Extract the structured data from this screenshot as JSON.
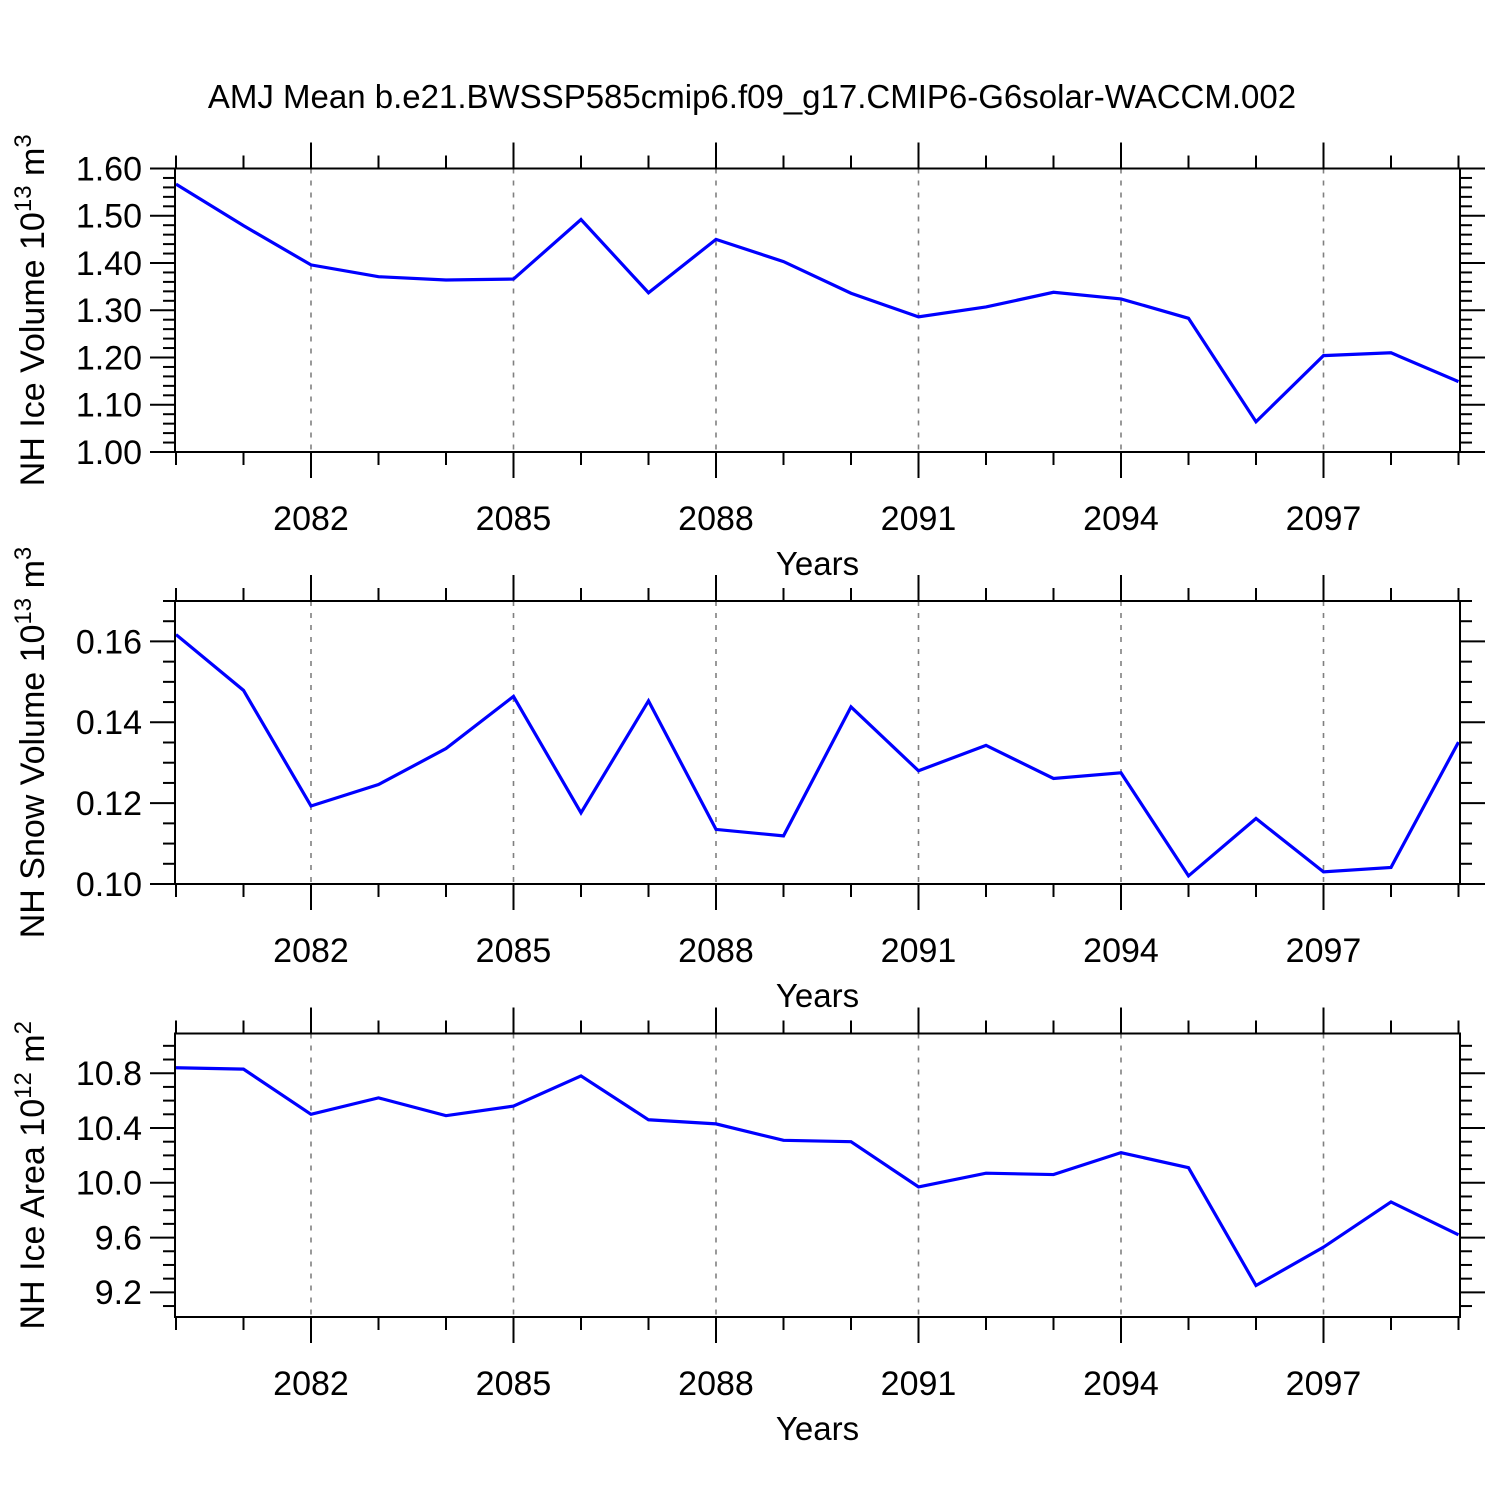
{
  "title": "AMJ Mean b.e21.BWSSP585cmip6.f09_g17.CMIP6-G6solar-WACCM.002",
  "colors": {
    "line": "#0000ff",
    "axis": "#000000",
    "grid": "#808080",
    "background": "#ffffff"
  },
  "chart_data": [
    {
      "type": "line",
      "name": "nh-ice-volume",
      "ylabel": "NH Ice Volume 10^13 m^3",
      "ylabel_segments": [
        {
          "text": "NH Ice Volume 10",
          "sup": false
        },
        {
          "text": "13",
          "sup": true
        },
        {
          "text": " m",
          "sup": false
        },
        {
          "text": "3",
          "sup": true
        }
      ],
      "xlabel": "Years",
      "x": [
        2080,
        2081,
        2082,
        2083,
        2084,
        2085,
        2086,
        2087,
        2088,
        2089,
        2090,
        2091,
        2092,
        2093,
        2094,
        2095,
        2096,
        2097,
        2098,
        2099
      ],
      "values": [
        1.567,
        1.479,
        1.396,
        1.371,
        1.364,
        1.366,
        1.492,
        1.337,
        1.45,
        1.403,
        1.336,
        1.286,
        1.307,
        1.338,
        1.324,
        1.283,
        1.064,
        1.204,
        1.21,
        1.149
      ],
      "ylim": [
        1.0,
        1.6
      ],
      "yminor": 0.02,
      "yticks": [
        {
          "v": 1.0,
          "label": "1.00"
        },
        {
          "v": 1.1,
          "label": "1.10"
        },
        {
          "v": 1.2,
          "label": "1.20"
        },
        {
          "v": 1.3,
          "label": "1.30"
        },
        {
          "v": 1.4,
          "label": "1.40"
        },
        {
          "v": 1.5,
          "label": "1.50"
        },
        {
          "v": 1.6,
          "label": "1.60"
        }
      ],
      "xticks": [
        2082,
        2085,
        2088,
        2091,
        2094,
        2097
      ],
      "grid": true,
      "legend": false
    },
    {
      "type": "line",
      "name": "nh-snow-volume",
      "ylabel": "NH Snow Volume 10^13 m^3",
      "ylabel_segments": [
        {
          "text": "NH Snow Volume 10",
          "sup": false
        },
        {
          "text": "13",
          "sup": true
        },
        {
          "text": " m",
          "sup": false
        },
        {
          "text": "3",
          "sup": true
        }
      ],
      "xlabel": "Years",
      "x": [
        2080,
        2081,
        2082,
        2083,
        2084,
        2085,
        2086,
        2087,
        2088,
        2089,
        2090,
        2091,
        2092,
        2093,
        2094,
        2095,
        2096,
        2097,
        2098,
        2099
      ],
      "values": [
        0.1617,
        0.1479,
        0.1193,
        0.1246,
        0.1335,
        0.1464,
        0.1176,
        0.1453,
        0.1135,
        0.1119,
        0.1438,
        0.128,
        0.1343,
        0.1261,
        0.1275,
        0.102,
        0.1162,
        0.103,
        0.1041,
        0.1351
      ],
      "ylim": [
        0.1,
        0.17
      ],
      "yminor": 0.005,
      "yticks": [
        {
          "v": 0.1,
          "label": "0.10"
        },
        {
          "v": 0.12,
          "label": "0.12"
        },
        {
          "v": 0.14,
          "label": "0.14"
        },
        {
          "v": 0.16,
          "label": "0.16"
        }
      ],
      "xticks": [
        2082,
        2085,
        2088,
        2091,
        2094,
        2097
      ],
      "grid": true,
      "legend": false
    },
    {
      "type": "line",
      "name": "nh-ice-area",
      "ylabel": "NH Ice Area 10^12 m^2",
      "ylabel_segments": [
        {
          "text": "NH Ice Area 10",
          "sup": false
        },
        {
          "text": "12",
          "sup": true
        },
        {
          "text": " m",
          "sup": false
        },
        {
          "text": "2",
          "sup": true
        }
      ],
      "xlabel": "Years",
      "x": [
        2080,
        2081,
        2082,
        2083,
        2084,
        2085,
        2086,
        2087,
        2088,
        2089,
        2090,
        2091,
        2092,
        2093,
        2094,
        2095,
        2096,
        2097,
        2098,
        2099
      ],
      "values": [
        10.84,
        10.83,
        10.5,
        10.62,
        10.49,
        10.56,
        10.78,
        10.46,
        10.43,
        10.31,
        10.3,
        9.97,
        10.07,
        10.06,
        10.22,
        10.11,
        9.25,
        9.53,
        9.86,
        9.62
      ],
      "ylim": [
        9.02,
        11.09
      ],
      "yminor": 0.1,
      "yticks": [
        {
          "v": 9.2,
          "label": "9.2"
        },
        {
          "v": 9.6,
          "label": "9.6"
        },
        {
          "v": 10.0,
          "label": "10.0"
        },
        {
          "v": 10.4,
          "label": "10.4"
        },
        {
          "v": 10.8,
          "label": "10.8"
        }
      ],
      "xticks": [
        2082,
        2085,
        2088,
        2091,
        2094,
        2097
      ],
      "grid": true,
      "legend": false
    }
  ]
}
